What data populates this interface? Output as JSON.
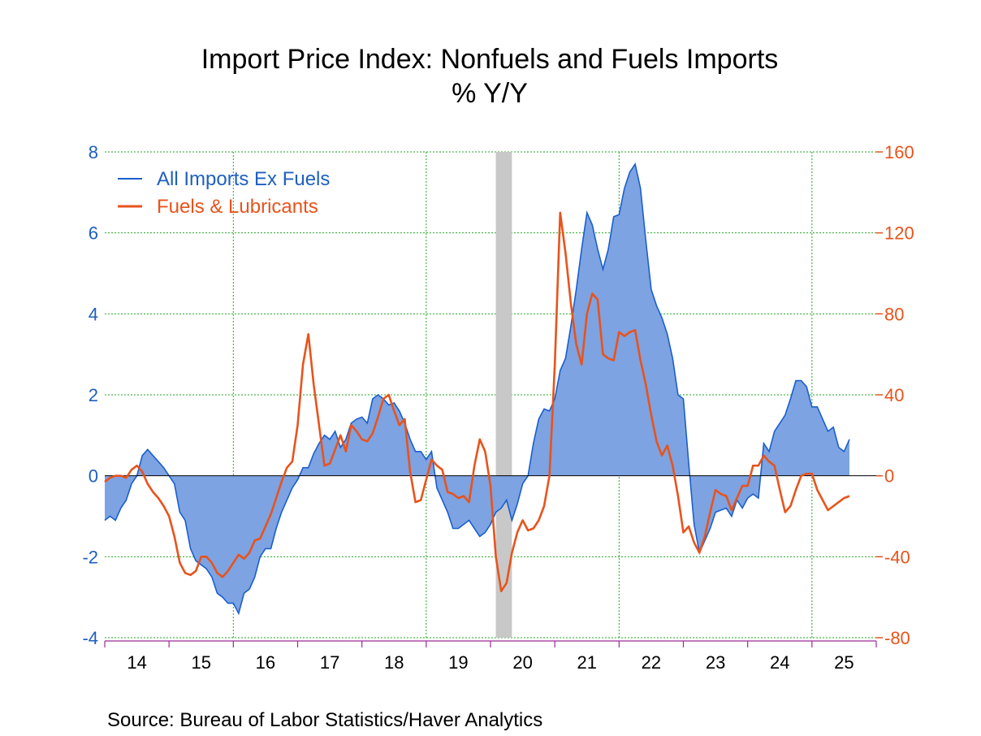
{
  "title": "Import Price Index: Nonfuels and Fuels Imports",
  "subtitle": "% Y/Y",
  "source": "Source:  Bureau of Labor Statistics/Haver Analytics",
  "colors": {
    "left_axis": "#1f5fbf",
    "right_axis": "#e8531c",
    "area_fill": "#7da3e2",
    "area_line": "#1a5fcc",
    "fuel_line": "#e8531c",
    "grid": "#22aa22",
    "recession": "#c8c8c8",
    "axis_tick": "#9a2a9a"
  },
  "chart_data": {
    "type": "area",
    "x_start": "2014-01",
    "x_end": "2025-05",
    "frequency": "monthly",
    "x_tick_labels": [
      "14",
      "15",
      "16",
      "17",
      "18",
      "19",
      "20",
      "21",
      "22",
      "23",
      "24",
      "25"
    ],
    "y_left": {
      "ticks": [
        "8",
        "6",
        "4",
        "2",
        "0",
        "-2",
        "-4"
      ],
      "ylim": [
        -4,
        8
      ]
    },
    "y_right": {
      "ticks": [
        "160",
        "120",
        "80",
        "40",
        "0",
        "-40",
        "-80"
      ],
      "ylim": [
        -80,
        160
      ]
    },
    "recession": {
      "start": "2020-02",
      "end": "2020-04"
    },
    "grid": true,
    "legend_position": "top-left",
    "series": [
      {
        "name": "All Imports Ex Fuels",
        "axis": "left",
        "style": "area",
        "values": [
          -1.1,
          -1.0,
          -1.1,
          -0.8,
          -0.6,
          -0.2,
          0.0,
          0.5,
          0.65,
          0.5,
          0.35,
          0.2,
          0.0,
          -0.2,
          -0.9,
          -1.1,
          -1.8,
          -2.1,
          -2.2,
          -2.3,
          -2.5,
          -2.9,
          -3.0,
          -3.15,
          -3.15,
          -3.4,
          -2.9,
          -2.8,
          -2.5,
          -2.0,
          -1.8,
          -1.8,
          -1.3,
          -0.9,
          -0.6,
          -0.3,
          -0.1,
          0.2,
          0.2,
          0.55,
          0.8,
          1.0,
          0.9,
          1.1,
          0.7,
          0.9,
          1.3,
          1.4,
          1.45,
          1.3,
          1.9,
          2.0,
          1.9,
          1.75,
          1.8,
          1.6,
          1.3,
          0.9,
          0.6,
          0.6,
          0.4,
          0.6,
          -0.3,
          -0.6,
          -0.9,
          -1.3,
          -1.3,
          -1.2,
          -1.1,
          -1.3,
          -1.5,
          -1.4,
          -1.2,
          -0.9,
          -0.8,
          -0.6,
          -1.1,
          -0.7,
          -0.2,
          0.0,
          0.8,
          1.4,
          1.65,
          1.6,
          1.9,
          2.6,
          2.9,
          3.7,
          4.6,
          5.6,
          6.5,
          6.2,
          5.6,
          5.1,
          5.6,
          6.4,
          6.45,
          7.1,
          7.5,
          7.7,
          7.1,
          5.8,
          4.6,
          4.2,
          3.9,
          3.5,
          2.9,
          2.0,
          1.9,
          0.3,
          -1.2,
          -1.9,
          -1.6,
          -1.3,
          -0.9,
          -0.85,
          -0.8,
          -1.0,
          -0.6,
          -0.8,
          -0.55,
          -0.45,
          -0.55,
          0.8,
          0.6,
          1.1,
          1.3,
          1.5,
          1.9,
          2.35,
          2.35,
          2.2,
          1.7,
          1.7,
          1.4,
          1.1,
          1.2,
          0.7,
          0.6,
          0.9
        ]
      },
      {
        "name": "Fuels & Lubricants",
        "axis": "right",
        "style": "line",
        "values": [
          -3,
          -1,
          0,
          0,
          -1,
          3,
          5,
          2,
          -4,
          -8,
          -11,
          -15,
          -20,
          -30,
          -43,
          -48,
          -49,
          -47,
          -40,
          -40,
          -43,
          -48,
          -50,
          -47,
          -43,
          -39,
          -41,
          -38,
          -32,
          -31,
          -25,
          -19,
          -11,
          -3,
          4,
          7,
          25,
          55,
          70,
          45,
          25,
          5,
          6,
          13,
          20,
          12,
          25,
          22,
          18,
          17,
          21,
          29,
          38,
          40,
          32,
          25,
          28,
          2,
          -13,
          -12,
          -2,
          8,
          5,
          3,
          -8,
          -9,
          -11,
          -10,
          -13,
          5,
          18,
          12,
          -5,
          -40,
          -57,
          -53,
          -38,
          -28,
          -22,
          -27,
          -26,
          -22,
          -15,
          0,
          55,
          130,
          110,
          85,
          65,
          55,
          80,
          90,
          87,
          60,
          58,
          57,
          71,
          69,
          71,
          72,
          57,
          45,
          30,
          17,
          10,
          15,
          5,
          -10,
          -28,
          -25,
          -33,
          -38,
          -30,
          -18,
          -7,
          -9,
          -10,
          -17,
          -11,
          -5,
          -5,
          5,
          5,
          10,
          7,
          5,
          -7,
          -18,
          -15,
          -7,
          0,
          1,
          1,
          -7,
          -12,
          -17,
          -15,
          -13,
          -11,
          -10
        ]
      }
    ]
  }
}
